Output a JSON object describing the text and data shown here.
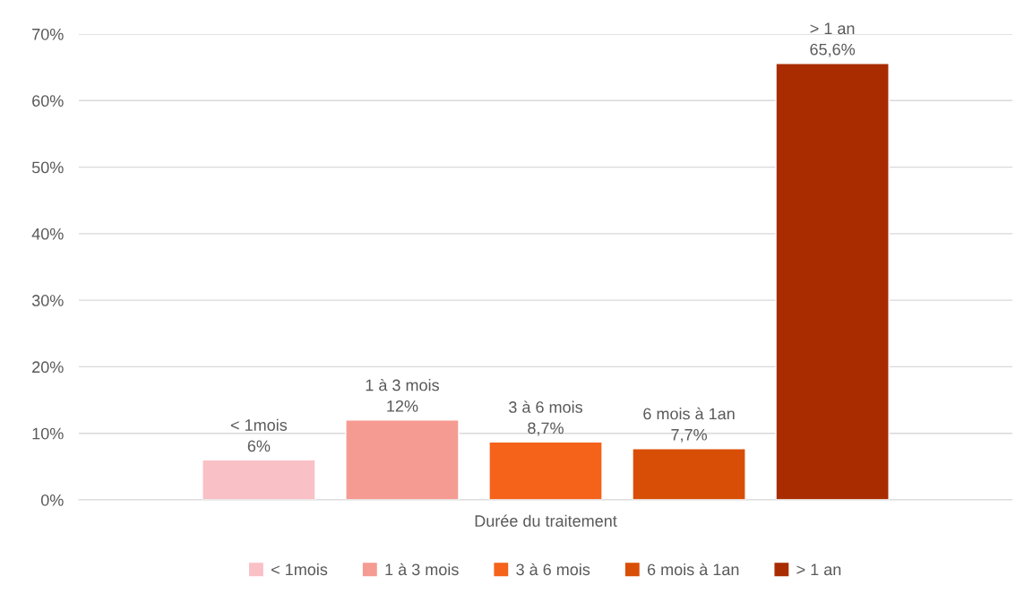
{
  "chart_data": {
    "type": "bar",
    "categories": [
      "Durée du traitement"
    ],
    "series": [
      {
        "name": "< 1mois",
        "color": "#f9c0c6",
        "values": [
          6
        ],
        "value_labels": [
          "6%"
        ]
      },
      {
        "name": "1 à 3 mois",
        "color": "#f59b92",
        "values": [
          12
        ],
        "value_labels": [
          "12%"
        ]
      },
      {
        "name": "3 à 6 mois",
        "color": "#f5621a",
        "values": [
          8.7
        ],
        "value_labels": [
          "8,7%"
        ]
      },
      {
        "name": "6 mois à 1an",
        "color": "#d94e06",
        "values": [
          7.7
        ],
        "value_labels": [
          "7,7%"
        ]
      },
      {
        "name": "> 1 an",
        "color": "#a82c00",
        "values": [
          65.6
        ],
        "value_labels": [
          "65,6%"
        ]
      }
    ],
    "ylim": [
      0,
      70
    ],
    "yticks": [
      {
        "value": 0,
        "label": "0%"
      },
      {
        "value": 10,
        "label": "10%"
      },
      {
        "value": 20,
        "label": "20%"
      },
      {
        "value": 30,
        "label": "30%"
      },
      {
        "value": 40,
        "label": "40%"
      },
      {
        "value": 50,
        "label": "50%"
      },
      {
        "value": 60,
        "label": "60%"
      },
      {
        "value": 70,
        "label": "70%"
      }
    ],
    "grid": "y",
    "legend": "bottom"
  }
}
